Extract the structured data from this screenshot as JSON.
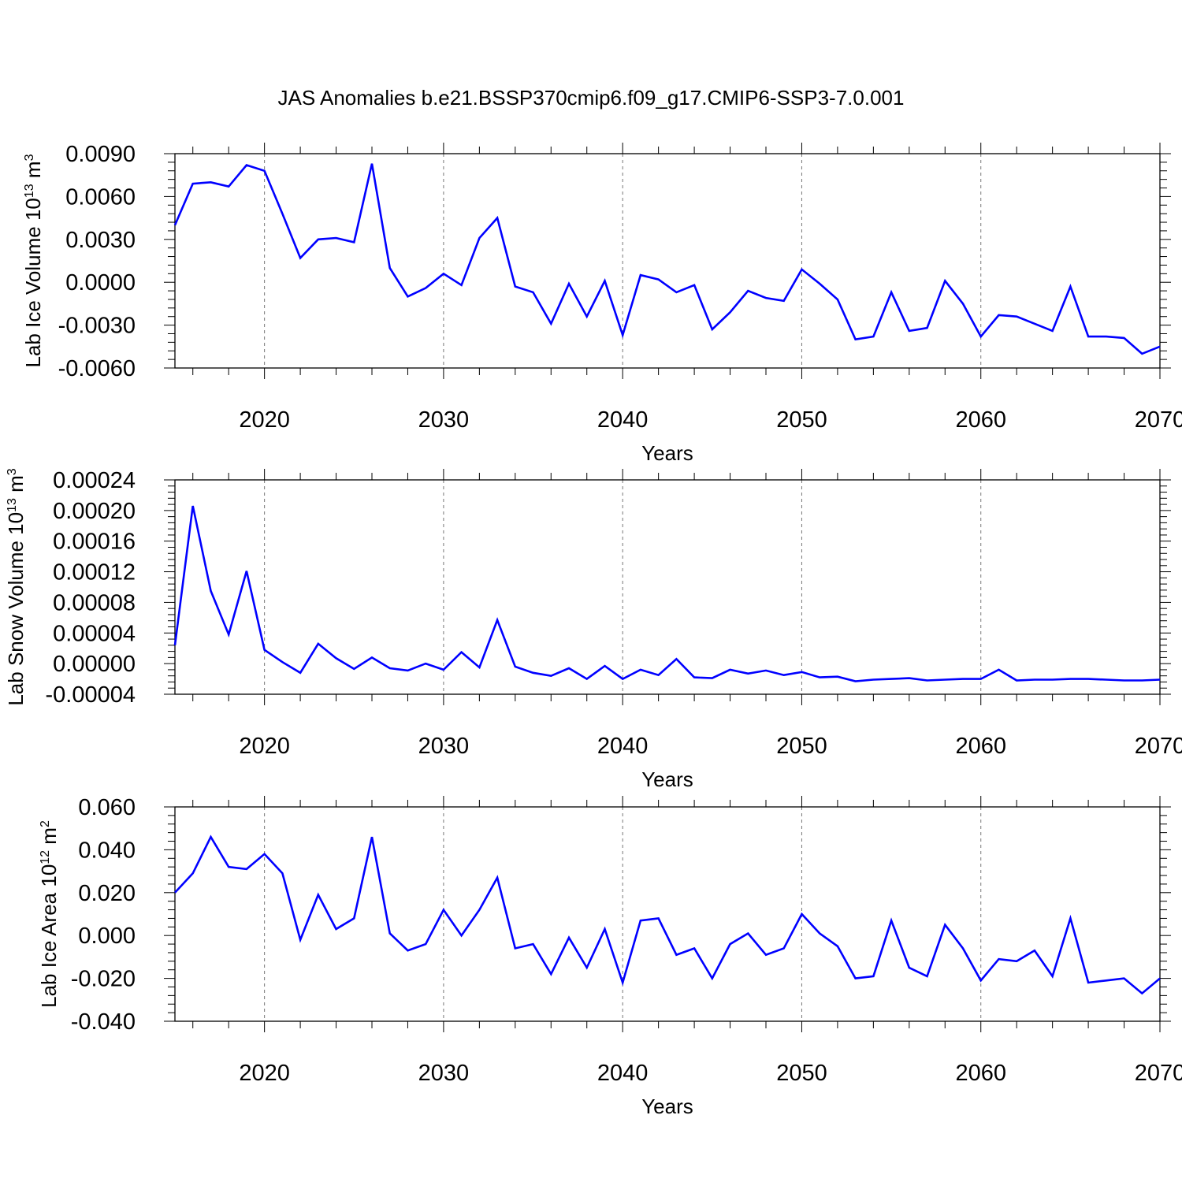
{
  "title": "JAS Anomalies b.e21.BSSP370cmip6.f09_g17.CMIP6-SSP3-7.0.001",
  "line_color": "#0000ff",
  "grid_color": "#777777",
  "chart_data": [
    {
      "type": "line",
      "xlabel": "Years",
      "ylabel": {
        "main": "Lab Ice Volume 10",
        "sup": "13",
        "unit": " m",
        "unit_sup": "3"
      },
      "xlim": [
        2015,
        2070
      ],
      "ylim": [
        -0.006,
        0.009
      ],
      "x_ticks": [
        "2020",
        "2030",
        "2040",
        "2050",
        "2060",
        "2070"
      ],
      "y_ticks": [
        "0.0090",
        "0.0060",
        "0.0030",
        "0.0000",
        "-0.0030",
        "-0.0060"
      ],
      "grid": "vertical dashed at major x ticks",
      "series": [
        {
          "x": [
            2015,
            2016,
            2017,
            2018,
            2019,
            2020,
            2021,
            2022,
            2023,
            2024,
            2025,
            2026,
            2027,
            2028,
            2029,
            2030,
            2031,
            2032,
            2033,
            2034,
            2035,
            2036,
            2037,
            2038,
            2039,
            2040,
            2041,
            2042,
            2043,
            2044,
            2045,
            2046,
            2047,
            2048,
            2049,
            2050,
            2051,
            2052,
            2053,
            2054,
            2055,
            2056,
            2057,
            2058,
            2059,
            2060,
            2061,
            2062,
            2063,
            2064,
            2065,
            2066,
            2067,
            2068,
            2069,
            2070
          ],
          "values": [
            0.004,
            0.0069,
            0.007,
            0.0067,
            0.0082,
            0.0078,
            0.0048,
            0.0017,
            0.003,
            0.0031,
            0.0028,
            0.0083,
            0.001,
            -0.001,
            -0.0004,
            0.0006,
            -0.0002,
            0.0031,
            0.0045,
            -0.0003,
            -0.0007,
            -0.0029,
            -0.0001,
            -0.0024,
            0.0001,
            -0.0037,
            0.0005,
            0.0002,
            -0.0007,
            -0.0002,
            -0.0033,
            -0.0021,
            -0.0006,
            -0.0011,
            -0.0013,
            0.0009,
            -0.0001,
            -0.0012,
            -0.004,
            -0.0038,
            -0.0007,
            -0.0034,
            -0.0032,
            0.0001,
            -0.0015,
            -0.0038,
            -0.0023,
            -0.0024,
            -0.0029,
            -0.0034,
            -0.0003,
            -0.0038,
            -0.0038,
            -0.0039,
            -0.005,
            -0.0045
          ]
        }
      ]
    },
    {
      "type": "line",
      "xlabel": "Years",
      "ylabel": {
        "main": "Lab Snow Volume 10",
        "sup": "13",
        "unit": " m",
        "unit_sup": "3"
      },
      "xlim": [
        2015,
        2070
      ],
      "ylim": [
        -4e-05,
        0.00024
      ],
      "x_ticks": [
        "2020",
        "2030",
        "2040",
        "2050",
        "2060",
        "2070"
      ],
      "y_ticks": [
        "0.00024",
        "0.00020",
        "0.00016",
        "0.00012",
        "0.00008",
        "0.00004",
        "0.00000",
        "-0.00004"
      ],
      "grid": "vertical dashed at major x ticks",
      "series": [
        {
          "x": [
            2015,
            2016,
            2017,
            2018,
            2019,
            2020,
            2021,
            2022,
            2023,
            2024,
            2025,
            2026,
            2027,
            2028,
            2029,
            2030,
            2031,
            2032,
            2033,
            2034,
            2035,
            2036,
            2037,
            2038,
            2039,
            2040,
            2041,
            2042,
            2043,
            2044,
            2045,
            2046,
            2047,
            2048,
            2049,
            2050,
            2051,
            2052,
            2053,
            2054,
            2055,
            2056,
            2057,
            2058,
            2059,
            2060,
            2061,
            2062,
            2063,
            2064,
            2065,
            2066,
            2067,
            2068,
            2069,
            2070
          ],
          "values": [
            2.4e-05,
            0.000206,
            9.5e-05,
            3.8e-05,
            0.000121,
            1.8e-05,
            2e-06,
            -1.2e-05,
            2.6e-05,
            7e-06,
            -7e-06,
            8e-06,
            -6e-06,
            -9e-06,
            0.0,
            -8e-06,
            1.5e-05,
            -5e-06,
            5.7e-05,
            -4e-06,
            -1.2e-05,
            -1.6e-05,
            -6e-06,
            -2e-05,
            -3e-06,
            -2e-05,
            -8e-06,
            -1.5e-05,
            6e-06,
            -1.8e-05,
            -1.9e-05,
            -8e-06,
            -1.3e-05,
            -9e-06,
            -1.5e-05,
            -1.1e-05,
            -1.8e-05,
            -1.7e-05,
            -2.3e-05,
            -2.1e-05,
            -2e-05,
            -1.9e-05,
            -2.2e-05,
            -2.1e-05,
            -2e-05,
            -2e-05,
            -8e-06,
            -2.2e-05,
            -2.1e-05,
            -2.1e-05,
            -2e-05,
            -2e-05,
            -2.1e-05,
            -2.2e-05,
            -2.2e-05,
            -2.1e-05
          ]
        }
      ]
    },
    {
      "type": "line",
      "xlabel": "Years",
      "ylabel": {
        "main": "Lab Ice Area 10",
        "sup": "12",
        "unit": " m",
        "unit_sup": "2"
      },
      "xlim": [
        2015,
        2070
      ],
      "ylim": [
        -0.04,
        0.06
      ],
      "x_ticks": [
        "2020",
        "2030",
        "2040",
        "2050",
        "2060",
        "2070"
      ],
      "y_ticks": [
        "0.060",
        "0.040",
        "0.020",
        "0.000",
        "-0.020",
        "-0.040"
      ],
      "grid": "vertical dashed at major x ticks",
      "series": [
        {
          "x": [
            2015,
            2016,
            2017,
            2018,
            2019,
            2020,
            2021,
            2022,
            2023,
            2024,
            2025,
            2026,
            2027,
            2028,
            2029,
            2030,
            2031,
            2032,
            2033,
            2034,
            2035,
            2036,
            2037,
            2038,
            2039,
            2040,
            2041,
            2042,
            2043,
            2044,
            2045,
            2046,
            2047,
            2048,
            2049,
            2050,
            2051,
            2052,
            2053,
            2054,
            2055,
            2056,
            2057,
            2058,
            2059,
            2060,
            2061,
            2062,
            2063,
            2064,
            2065,
            2066,
            2067,
            2068,
            2069,
            2070
          ],
          "values": [
            0.02,
            0.029,
            0.046,
            0.032,
            0.031,
            0.038,
            0.029,
            -0.002,
            0.019,
            0.003,
            0.008,
            0.046,
            0.001,
            -0.007,
            -0.004,
            0.012,
            0.0,
            0.012,
            0.027,
            -0.006,
            -0.004,
            -0.018,
            -0.001,
            -0.015,
            0.003,
            -0.022,
            0.007,
            0.008,
            -0.009,
            -0.006,
            -0.02,
            -0.004,
            0.001,
            -0.009,
            -0.006,
            0.01,
            0.001,
            -0.005,
            -0.02,
            -0.019,
            0.007,
            -0.015,
            -0.019,
            0.005,
            -0.006,
            -0.021,
            -0.011,
            -0.012,
            -0.007,
            -0.019,
            0.008,
            -0.022,
            -0.021,
            -0.02,
            -0.027,
            -0.02
          ]
        }
      ]
    }
  ]
}
